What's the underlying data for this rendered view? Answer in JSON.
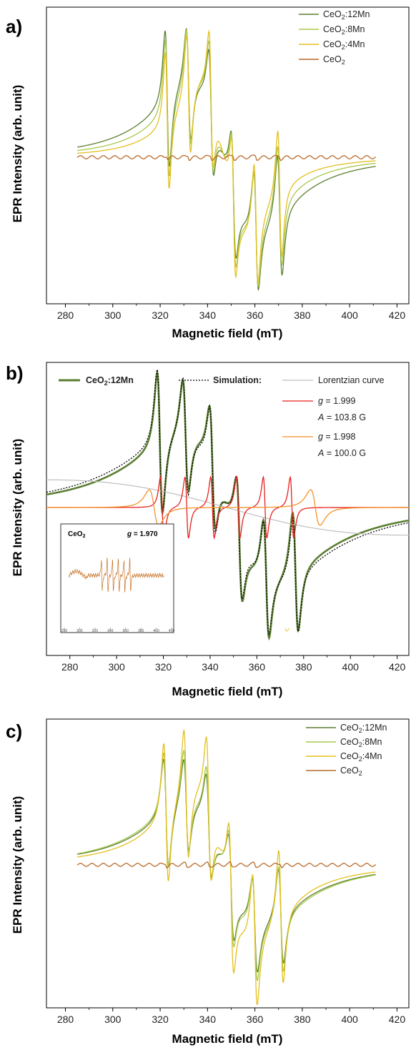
{
  "colors": {
    "mn12": "#5b7f32",
    "mn8": "#a8c84a",
    "mn4": "#e3c01e",
    "ceo2": "#b86a2a",
    "sim": "#000000",
    "lorentz": "#bfbfbf",
    "sim_red": "#e82020",
    "sim_orange": "#f5922a",
    "axis": "#000000"
  },
  "chart_data": [
    {
      "panel": "a)",
      "type": "line",
      "xlabel": "Magnetic field (mT)",
      "ylabel": "EPR Intensity (arb. unit)",
      "xlim": [
        272,
        425
      ],
      "ylim": [
        -1.15,
        1.15
      ],
      "xticks": [
        280,
        300,
        320,
        340,
        360,
        380,
        400,
        420
      ],
      "legend_position": "top-right",
      "series": [
        {
          "name": "CeO2:12Mn",
          "color_key": "mn12",
          "amp": 1.0,
          "hf_scale": 1.0,
          "lor_width": 10,
          "lines": [
            {
              "center": 323,
              "width": 1.6,
              "weight": 1.25
            },
            {
              "center": 332,
              "width": 1.7,
              "weight": 1.0
            },
            {
              "center": 341.5,
              "width": 1.7,
              "weight": 1.0
            },
            {
              "center": 351,
              "width": 1.7,
              "weight": 1.0
            },
            {
              "center": 360.5,
              "width": 1.7,
              "weight": 1.05
            },
            {
              "center": 370.5,
              "width": 1.7,
              "weight": 1.1
            }
          ]
        },
        {
          "name": "CeO2:8Mn",
          "color_key": "mn8",
          "amp": 1.0,
          "hf_scale": 1.0,
          "lor_width": 8.5,
          "lines": [
            {
              "center": 323,
              "width": 1.5,
              "weight": 1.25
            },
            {
              "center": 332,
              "width": 1.6,
              "weight": 1.05
            },
            {
              "center": 341.5,
              "width": 1.6,
              "weight": 1.05
            },
            {
              "center": 351,
              "width": 1.6,
              "weight": 1.05
            },
            {
              "center": 360.5,
              "width": 1.6,
              "weight": 1.05
            },
            {
              "center": 370.5,
              "width": 1.6,
              "weight": 1.1
            }
          ]
        },
        {
          "name": "CeO2:4Mn",
          "color_key": "mn4",
          "amp": 1.0,
          "hf_scale": 1.0,
          "lor_width": 7,
          "lines": [
            {
              "center": 323,
              "width": 1.4,
              "weight": 1.25
            },
            {
              "center": 332,
              "width": 1.5,
              "weight": 1.1
            },
            {
              "center": 341.5,
              "width": 1.5,
              "weight": 1.1
            },
            {
              "center": 351,
              "width": 1.5,
              "weight": 1.1
            },
            {
              "center": 360.5,
              "width": 1.5,
              "weight": 1.1
            },
            {
              "center": 370.5,
              "width": 1.5,
              "weight": 1.15
            }
          ]
        },
        {
          "name": "CeO2",
          "color_key": "ceo2",
          "amp": 0.03,
          "hf_scale": 1.0,
          "lor_width": 0,
          "lines": [
            {
              "center": 323,
              "width": 0.8,
              "weight": 1.0
            },
            {
              "center": 332,
              "width": 0.8,
              "weight": 1.0
            },
            {
              "center": 341.5,
              "width": 0.8,
              "weight": 1.0
            },
            {
              "center": 351,
              "width": 0.8,
              "weight": 1.0
            },
            {
              "center": 360.5,
              "width": 0.8,
              "weight": 1.0
            },
            {
              "center": 370.5,
              "width": 0.8,
              "weight": 1.0
            }
          ]
        }
      ]
    },
    {
      "panel": "b)",
      "type": "line",
      "xlabel": "Magnetic field (mT)",
      "ylabel": "EPR Intensity (arb. unit)",
      "xlim": [
        270,
        425
      ],
      "ylim": [
        -1.3,
        1.15
      ],
      "xticks": [
        280,
        300,
        320,
        340,
        360,
        380,
        400,
        420
      ],
      "legend": {
        "series_label": "CeO2:12Mn",
        "simulation_label": "Simulation:",
        "lorentzian_label": "Lorentzian curve",
        "red_g": "g = 1.999",
        "red_A": "A = 103.8 G",
        "orange_g": "g = 1.998",
        "orange_A": "A = 100.0 G"
      },
      "inset": {
        "label": "CeO2",
        "g_label": "g = 1.970",
        "xticks": [
          280,
          300,
          320,
          340,
          360,
          380,
          400,
          420
        ]
      },
      "series": [
        {
          "name": "CeO2:12Mn",
          "color_key": "mn12",
          "amp": 1.0,
          "lor_width": 14,
          "lines": [
            {
              "center": 318.5,
              "width": 2.0,
              "weight": 1.3
            },
            {
              "center": 329.5,
              "width": 2.1,
              "weight": 1.0
            },
            {
              "center": 341,
              "width": 2.1,
              "weight": 1.0
            },
            {
              "center": 352.5,
              "width": 2.1,
              "weight": 1.0
            },
            {
              "center": 364,
              "width": 2.1,
              "weight": 1.05
            },
            {
              "center": 376.5,
              "width": 2.1,
              "weight": 1.1
            }
          ]
        },
        {
          "name": "Simulation",
          "color_key": "sim",
          "amp": 1.0,
          "lor_width": 15,
          "lines": [
            {
              "center": 318.5,
              "width": 2.0,
              "weight": 1.3
            },
            {
              "center": 329.5,
              "width": 2.0,
              "weight": 1.05
            },
            {
              "center": 341,
              "width": 2.0,
              "weight": 1.05
            },
            {
              "center": 352.5,
              "width": 2.0,
              "weight": 1.0
            },
            {
              "center": 364,
              "width": 2.0,
              "weight": 1.0
            },
            {
              "center": 376.5,
              "width": 2.0,
              "weight": 1.05
            }
          ]
        },
        {
          "name": "Lorentzian curve",
          "color_key": "lorentz",
          "amp": 0.38,
          "lor_width": 55,
          "lines": [
            {
              "center": 347,
              "width": 0,
              "weight": 0
            }
          ]
        },
        {
          "name": "g = 1.999",
          "color_key": "sim_red",
          "amp": 0.55,
          "lor_width": 0,
          "lines": [
            {
              "center": 319.5,
              "width": 1.3,
              "weight": 1.0
            },
            {
              "center": 330,
              "width": 1.3,
              "weight": 1.0
            },
            {
              "center": 341,
              "width": 1.3,
              "weight": 1.0
            },
            {
              "center": 352,
              "width": 1.3,
              "weight": 1.0
            },
            {
              "center": 363.5,
              "width": 1.3,
              "weight": 1.0
            },
            {
              "center": 375,
              "width": 1.3,
              "weight": 1.0
            }
          ]
        },
        {
          "name": "g = 1.998",
          "color_key": "sim_orange",
          "amp": 0.32,
          "lor_width": 0,
          "lines": [
            {
              "center": 316,
              "width": 3.5,
              "weight": 1.0
            },
            {
              "center": 385,
              "width": 3.5,
              "weight": 1.0
            }
          ]
        }
      ]
    },
    {
      "panel": "c)",
      "type": "line",
      "xlabel": "Magnetic field (mT)",
      "ylabel": "EPR Intensity (arb. unit)",
      "xlim": [
        272,
        425
      ],
      "ylim": [
        -1.2,
        1.15
      ],
      "xticks": [
        280,
        300,
        320,
        340,
        360,
        380,
        400,
        420
      ],
      "legend_position": "top-right",
      "series": [
        {
          "name": "CeO2:12Mn",
          "color_key": "mn12",
          "amp": 0.85,
          "lor_width": 11,
          "lines": [
            {
              "center": 322.5,
              "width": 1.9,
              "weight": 1.2
            },
            {
              "center": 331,
              "width": 1.9,
              "weight": 1.0
            },
            {
              "center": 340.5,
              "width": 1.9,
              "weight": 1.0
            },
            {
              "center": 350,
              "width": 1.9,
              "weight": 1.0
            },
            {
              "center": 360,
              "width": 1.9,
              "weight": 1.0
            },
            {
              "center": 371,
              "width": 1.9,
              "weight": 1.05
            }
          ]
        },
        {
          "name": "CeO2:8Mn",
          "color_key": "mn8",
          "amp": 0.9,
          "lor_width": 11,
          "lines": [
            {
              "center": 322.5,
              "width": 1.8,
              "weight": 1.2
            },
            {
              "center": 331,
              "width": 1.8,
              "weight": 1.05
            },
            {
              "center": 340.5,
              "width": 1.8,
              "weight": 1.05
            },
            {
              "center": 350,
              "width": 1.8,
              "weight": 1.05
            },
            {
              "center": 360,
              "width": 1.8,
              "weight": 1.05
            },
            {
              "center": 371,
              "width": 1.8,
              "weight": 1.1
            }
          ]
        },
        {
          "name": "CeO2:4Mn",
          "color_key": "mn4",
          "amp": 1.05,
          "lor_width": 9,
          "lines": [
            {
              "center": 322.5,
              "width": 1.7,
              "weight": 1.25
            },
            {
              "center": 331,
              "width": 1.7,
              "weight": 1.15
            },
            {
              "center": 340.5,
              "width": 1.7,
              "weight": 1.15
            },
            {
              "center": 350,
              "width": 1.7,
              "weight": 1.15
            },
            {
              "center": 360,
              "width": 1.7,
              "weight": 1.15
            },
            {
              "center": 371,
              "width": 1.7,
              "weight": 1.2
            }
          ]
        },
        {
          "name": "CeO2",
          "color_key": "ceo2",
          "amp": 0.03,
          "lor_width": 0,
          "lines": [
            {
              "center": 322.5,
              "width": 0.8,
              "weight": 1.0
            },
            {
              "center": 331,
              "width": 0.8,
              "weight": 1.0
            },
            {
              "center": 340.5,
              "width": 0.8,
              "weight": 1.0
            },
            {
              "center": 350,
              "width": 0.8,
              "weight": 1.0
            },
            {
              "center": 360,
              "width": 0.8,
              "weight": 1.0
            },
            {
              "center": 371,
              "width": 0.8,
              "weight": 1.0
            }
          ]
        }
      ]
    }
  ]
}
